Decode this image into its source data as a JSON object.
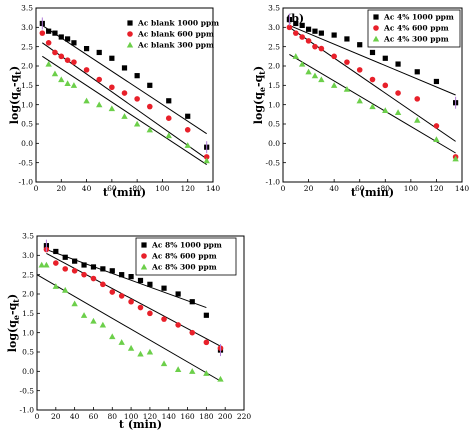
{
  "chart_data": [
    {
      "type": "scatter",
      "panel_label": "",
      "xlabel": "t (min)",
      "ylabel": "log(q<sub>e</sub>-q<sub>t</sub>)",
      "xlim": [
        0,
        140
      ],
      "ylim": [
        -1.0,
        3.5
      ],
      "xticks": [
        "0",
        "20",
        "40",
        "60",
        "80",
        "100",
        "120",
        "140"
      ],
      "yticks": [
        "-1.0",
        "-0.5",
        "0.0",
        "0.5",
        "1.0",
        "1.5",
        "2.0",
        "2.5",
        "3.0",
        "3.5"
      ],
      "legend_position": "top-right",
      "legend_box": false,
      "series": [
        {
          "name": "Ac blank 1000 ppm",
          "marker": "square",
          "color": "#000000",
          "x": [
            5,
            10,
            15,
            20,
            25,
            30,
            40,
            50,
            60,
            70,
            80,
            90,
            105,
            120,
            135
          ],
          "y": [
            3.1,
            2.9,
            2.85,
            2.75,
            2.7,
            2.6,
            2.45,
            2.35,
            2.2,
            1.95,
            1.75,
            1.5,
            1.1,
            0.7,
            -0.1
          ],
          "fit": {
            "x": [
              5,
              135
            ],
            "y": [
              3.05,
              0.25
            ]
          }
        },
        {
          "name": "Ac blank 600 ppm",
          "marker": "circle",
          "color": "#e8202a",
          "x": [
            5,
            10,
            15,
            20,
            25,
            30,
            40,
            50,
            60,
            70,
            80,
            90,
            105,
            120,
            135
          ],
          "y": [
            2.85,
            2.6,
            2.35,
            2.25,
            2.15,
            2.1,
            1.9,
            1.65,
            1.45,
            1.3,
            1.15,
            0.95,
            0.65,
            0.35,
            -0.35
          ],
          "fit": {
            "x": [
              5,
              135
            ],
            "y": [
              2.6,
              -0.4
            ]
          }
        },
        {
          "name": "Ac blank 300 ppm",
          "marker": "triangle",
          "color": "#6ccf4a",
          "x": [
            10,
            15,
            20,
            25,
            30,
            40,
            50,
            60,
            70,
            80,
            90,
            105,
            120,
            135
          ],
          "y": [
            2.05,
            1.8,
            1.65,
            1.55,
            1.5,
            1.1,
            1.0,
            0.9,
            0.7,
            0.5,
            0.35,
            0.2,
            -0.05,
            -0.45
          ],
          "fit": {
            "x": [
              5,
              135
            ],
            "y": [
              2.25,
              -0.55
            ]
          }
        }
      ]
    },
    {
      "type": "scatter",
      "panel_label": "(b)",
      "xlabel": "t (min)",
      "ylabel": "log(q<sub>e</sub>-q<sub>t</sub>)",
      "xlim": [
        0,
        140
      ],
      "ylim": [
        -1.0,
        3.5
      ],
      "xticks": [
        "0",
        "20",
        "40",
        "60",
        "80",
        "100",
        "120",
        "140"
      ],
      "yticks": [
        "-1.0",
        "-0.5",
        "0.0",
        "0.5",
        "1.0",
        "1.5",
        "2.0",
        "2.5",
        "3.0",
        "3.5"
      ],
      "legend_position": "top-right",
      "legend_box": true,
      "series": [
        {
          "name": "Ac 4% 1000 ppm",
          "marker": "square",
          "color": "#000000",
          "x": [
            5,
            10,
            15,
            20,
            25,
            30,
            40,
            50,
            60,
            70,
            80,
            90,
            105,
            120,
            135
          ],
          "y": [
            3.2,
            3.1,
            3.05,
            2.95,
            2.9,
            2.85,
            2.8,
            2.7,
            2.55,
            2.35,
            2.2,
            2.05,
            1.85,
            1.6,
            1.05
          ],
          "fit": {
            "x": [
              5,
              135
            ],
            "y": [
              3.05,
              1.25
            ]
          }
        },
        {
          "name": "Ac 4% 600 ppm",
          "marker": "circle",
          "color": "#e8202a",
          "x": [
            5,
            10,
            15,
            20,
            25,
            30,
            40,
            50,
            60,
            70,
            80,
            90,
            105,
            120,
            135
          ],
          "y": [
            3.0,
            2.85,
            2.75,
            2.65,
            2.5,
            2.45,
            2.25,
            2.1,
            1.9,
            1.65,
            1.5,
            1.3,
            1.15,
            0.45,
            -0.35
          ],
          "fit": {
            "x": [
              5,
              135
            ],
            "y": [
              3.0,
              0.05
            ]
          }
        },
        {
          "name": "Ac 4% 300 ppm",
          "marker": "triangle",
          "color": "#6ccf4a",
          "x": [
            10,
            15,
            20,
            25,
            30,
            40,
            50,
            60,
            70,
            80,
            90,
            105,
            120,
            135
          ],
          "y": [
            2.25,
            2.05,
            1.85,
            1.75,
            1.65,
            1.5,
            1.4,
            1.1,
            0.95,
            0.85,
            0.8,
            0.6,
            0.1,
            -0.4
          ],
          "fit": {
            "x": [
              5,
              135
            ],
            "y": [
              2.3,
              -0.25
            ]
          }
        }
      ]
    },
    {
      "type": "scatter",
      "panel_label": "",
      "xlabel": "t (min)",
      "ylabel": "log(q<sub>e</sub>-q<sub>t</sub>)",
      "xlim": [
        0,
        220
      ],
      "ylim": [
        -1.0,
        3.5
      ],
      "xticks": [
        "0",
        "20",
        "40",
        "60",
        "80",
        "100",
        "120",
        "140",
        "160",
        "180",
        "200",
        "220"
      ],
      "yticks": [
        "-1.0",
        "-0.5",
        "0.0",
        "0.5",
        "1.0",
        "1.5",
        "2.0",
        "2.5",
        "3.0",
        "3.5"
      ],
      "legend_position": "top-right",
      "legend_box": true,
      "series": [
        {
          "name": "Ac 8% 1000 ppm",
          "marker": "square",
          "color": "#000000",
          "x": [
            10,
            20,
            30,
            40,
            50,
            60,
            70,
            80,
            90,
            100,
            110,
            120,
            135,
            150,
            165,
            180,
            195
          ],
          "y": [
            3.25,
            3.1,
            2.95,
            2.85,
            2.75,
            2.7,
            2.65,
            2.6,
            2.5,
            2.45,
            2.35,
            2.25,
            2.15,
            2.0,
            1.8,
            1.45,
            0.55
          ],
          "fit": {
            "x": [
              10,
              180
            ],
            "y": [
              3.15,
              1.65
            ]
          }
        },
        {
          "name": "Ac 8% 600 ppm",
          "marker": "circle",
          "color": "#e8202a",
          "x": [
            10,
            20,
            30,
            40,
            50,
            60,
            70,
            80,
            90,
            100,
            110,
            120,
            135,
            150,
            165,
            180,
            195
          ],
          "y": [
            3.15,
            2.8,
            2.65,
            2.6,
            2.5,
            2.4,
            2.25,
            2.05,
            1.95,
            1.8,
            1.65,
            1.5,
            1.35,
            1.2,
            1.0,
            0.75,
            0.6
          ],
          "fit": {
            "x": [
              10,
              195
            ],
            "y": [
              3.05,
              0.65
            ]
          }
        },
        {
          "name": "Ac 8% 300 ppm",
          "marker": "triangle",
          "color": "#6ccf4a",
          "x": [
            5,
            10,
            20,
            30,
            40,
            50,
            60,
            70,
            80,
            90,
            100,
            110,
            120,
            135,
            150,
            165,
            180,
            195
          ],
          "y": [
            2.75,
            2.75,
            2.2,
            2.1,
            1.75,
            1.45,
            1.3,
            1.2,
            0.9,
            0.75,
            0.6,
            0.45,
            0.5,
            0.2,
            0.05,
            0.0,
            -0.05,
            -0.2
          ],
          "fit": {
            "x": [
              0,
              195
            ],
            "y": [
              2.5,
              -0.25
            ]
          }
        }
      ]
    }
  ]
}
